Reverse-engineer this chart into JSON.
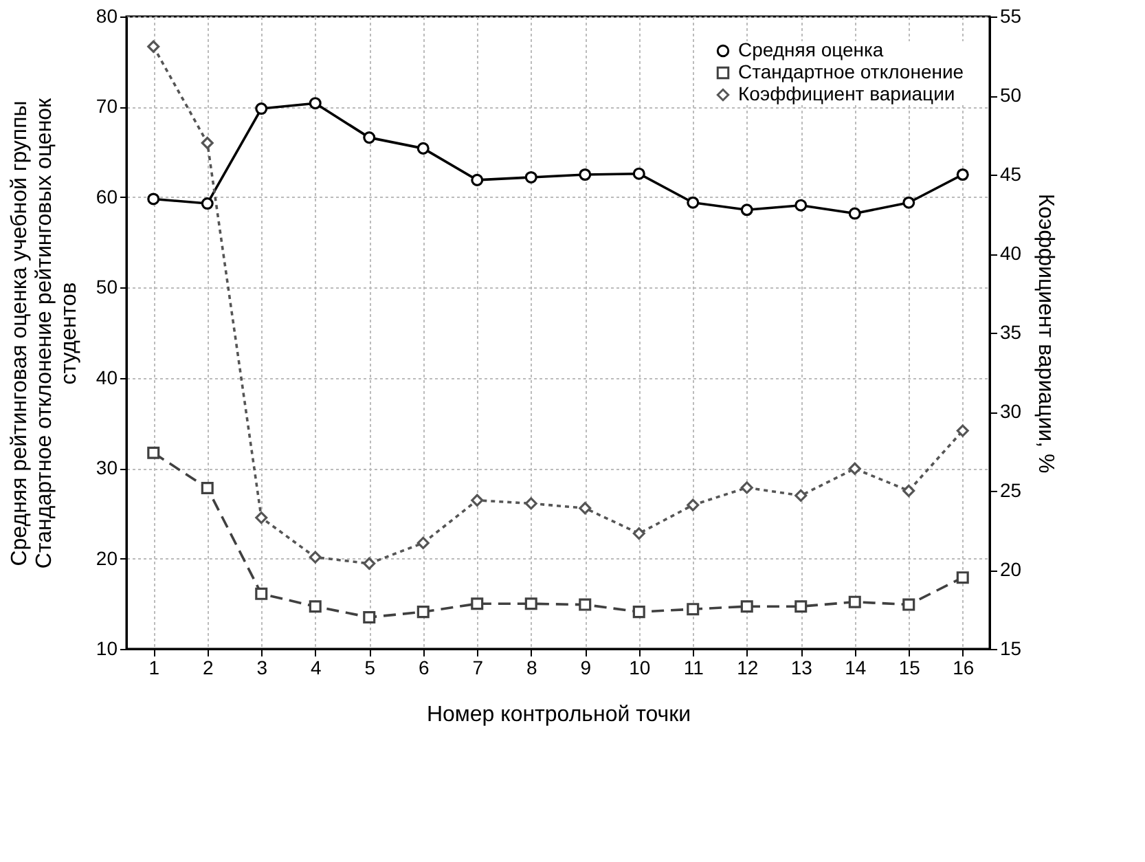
{
  "chart_data": {
    "type": "line",
    "xlabel": "Номер контрольной точки",
    "ylabel": "Средняя рейтинговая оценка учебной группы\nСтандартное отклонение рейтинговых оценок\nстудентов",
    "y2label": "Коэффициент вариации, %",
    "x": [
      1,
      2,
      3,
      4,
      5,
      6,
      7,
      8,
      9,
      10,
      11,
      12,
      13,
      14,
      15,
      16
    ],
    "xlim": [
      0.5,
      16.5
    ],
    "xticks": [
      1,
      2,
      3,
      4,
      5,
      6,
      7,
      8,
      9,
      10,
      11,
      12,
      13,
      14,
      15,
      16
    ],
    "ylim": [
      10,
      80
    ],
    "yticks": [
      10,
      20,
      30,
      40,
      50,
      60,
      70,
      80
    ],
    "y2lim": [
      15,
      55
    ],
    "y2ticks": [
      15,
      20,
      25,
      30,
      35,
      40,
      45,
      50,
      55
    ],
    "grid": true,
    "legend": "top right",
    "series": [
      {
        "name": "Средняя оценка",
        "color": "#000000",
        "marker": "circle",
        "line_style": "solid",
        "values": [
          59.8,
          59.3,
          69.8,
          70.4,
          66.6,
          65.4,
          61.9,
          62.2,
          62.5,
          62.6,
          59.4,
          58.6,
          59.1,
          58.2,
          59.4,
          62.5
        ]
      },
      {
        "name": "Стандартное отклонение",
        "color": "#404040",
        "marker": "square",
        "line_style": "dashed",
        "values": [
          31.7,
          27.8,
          16.1,
          14.7,
          13.5,
          14.1,
          15.0,
          15.0,
          14.9,
          14.1,
          14.4,
          14.7,
          14.7,
          15.2,
          14.9,
          17.9
        ]
      },
      {
        "name": "Коэффициент вариации",
        "color": "#555555",
        "marker": "diamond",
        "line_style": "dotted",
        "axis": "y2",
        "values": [
          53.1,
          47.0,
          23.3,
          20.8,
          20.4,
          21.7,
          24.4,
          24.2,
          23.9,
          22.3,
          24.1,
          25.2,
          24.7,
          26.4,
          25.0,
          28.8
        ]
      }
    ]
  }
}
